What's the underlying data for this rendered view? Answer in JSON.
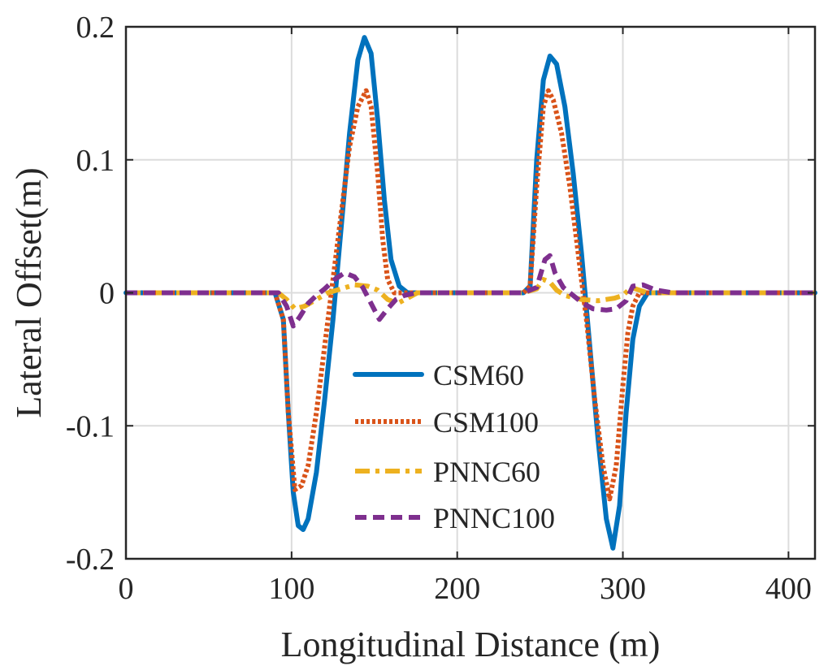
{
  "chart_data": {
    "type": "line",
    "title": "",
    "xlabel": "Longitudinal Distance (m)",
    "ylabel": "Lateral Offset(m)",
    "xlim": [
      0,
      416
    ],
    "ylim": [
      -0.2,
      0.2
    ],
    "grid": true,
    "legend_position": "bottom-center",
    "x_ticks": [
      0,
      100,
      200,
      300,
      400
    ],
    "x_tick_labels": [
      "0",
      "100",
      "200",
      "300",
      "400"
    ],
    "y_ticks": [
      0.2,
      0.1,
      0,
      -0.1,
      -0.2
    ],
    "y_tick_labels": [
      "0.2",
      "0.1",
      "0",
      "-0.1",
      "-0.2"
    ],
    "series": [
      {
        "name": "CSM60",
        "color": "#0072BD",
        "style": "solid",
        "points": [
          [
            0,
            0
          ],
          [
            90,
            0
          ],
          [
            95,
            -0.02
          ],
          [
            98,
            -0.09
          ],
          [
            101,
            -0.15
          ],
          [
            104,
            -0.175
          ],
          [
            107,
            -0.178
          ],
          [
            110,
            -0.17
          ],
          [
            115,
            -0.135
          ],
          [
            120,
            -0.08
          ],
          [
            125,
            -0.02
          ],
          [
            130,
            0.05
          ],
          [
            135,
            0.12
          ],
          [
            140,
            0.175
          ],
          [
            144,
            0.192
          ],
          [
            148,
            0.18
          ],
          [
            152,
            0.13
          ],
          [
            156,
            0.07
          ],
          [
            160,
            0.025
          ],
          [
            165,
            0.005
          ],
          [
            170,
            0
          ],
          [
            240,
            0
          ],
          [
            244,
            0.005
          ],
          [
            248,
            0.1
          ],
          [
            252,
            0.16
          ],
          [
            256,
            0.178
          ],
          [
            260,
            0.172
          ],
          [
            265,
            0.14
          ],
          [
            270,
            0.09
          ],
          [
            275,
            0.03
          ],
          [
            280,
            -0.04
          ],
          [
            285,
            -0.11
          ],
          [
            290,
            -0.17
          ],
          [
            294,
            -0.192
          ],
          [
            298,
            -0.16
          ],
          [
            302,
            -0.09
          ],
          [
            306,
            -0.035
          ],
          [
            310,
            -0.01
          ],
          [
            315,
            0
          ],
          [
            416,
            0
          ]
        ]
      },
      {
        "name": "CSM100",
        "color": "#D95319",
        "style": "dotted",
        "points": [
          [
            0,
            0
          ],
          [
            90,
            0
          ],
          [
            95,
            -0.02
          ],
          [
            98,
            -0.09
          ],
          [
            102,
            -0.148
          ],
          [
            106,
            -0.145
          ],
          [
            110,
            -0.13
          ],
          [
            115,
            -0.09
          ],
          [
            120,
            -0.04
          ],
          [
            125,
            0.01
          ],
          [
            130,
            0.06
          ],
          [
            135,
            0.11
          ],
          [
            140,
            0.14
          ],
          [
            145,
            0.152
          ],
          [
            148,
            0.14
          ],
          [
            152,
            0.09
          ],
          [
            155,
            0.04
          ],
          [
            158,
            0.01
          ],
          [
            162,
            0
          ],
          [
            240,
            0
          ],
          [
            244,
            0.005
          ],
          [
            248,
            0.08
          ],
          [
            252,
            0.14
          ],
          [
            255,
            0.152
          ],
          [
            258,
            0.145
          ],
          [
            263,
            0.12
          ],
          [
            268,
            0.08
          ],
          [
            273,
            0.03
          ],
          [
            278,
            -0.02
          ],
          [
            283,
            -0.08
          ],
          [
            288,
            -0.13
          ],
          [
            292,
            -0.155
          ],
          [
            296,
            -0.13
          ],
          [
            300,
            -0.07
          ],
          [
            303,
            -0.03
          ],
          [
            306,
            -0.01
          ],
          [
            310,
            0
          ],
          [
            416,
            0
          ]
        ]
      },
      {
        "name": "PNNC60",
        "color": "#EDB120",
        "style": "dashdot",
        "points": [
          [
            0,
            0
          ],
          [
            92,
            0
          ],
          [
            97,
            -0.005
          ],
          [
            102,
            -0.012
          ],
          [
            108,
            -0.01
          ],
          [
            115,
            -0.005
          ],
          [
            122,
            0
          ],
          [
            130,
            0.003
          ],
          [
            138,
            0.006
          ],
          [
            146,
            0.005
          ],
          [
            152,
            0.002
          ],
          [
            158,
            -0.005
          ],
          [
            164,
            -0.008
          ],
          [
            170,
            -0.004
          ],
          [
            176,
            0
          ],
          [
            240,
            0
          ],
          [
            248,
            0.003
          ],
          [
            252,
            0.01
          ],
          [
            256,
            0.008
          ],
          [
            260,
            0.002
          ],
          [
            265,
            -0.002
          ],
          [
            275,
            -0.005
          ],
          [
            285,
            -0.006
          ],
          [
            295,
            -0.004
          ],
          [
            300,
            -0.002
          ],
          [
            305,
            0.004
          ],
          [
            310,
            0.002
          ],
          [
            315,
            0
          ],
          [
            416,
            0
          ]
        ]
      },
      {
        "name": "PNNC100",
        "color": "#7E2F8E",
        "style": "dashed",
        "points": [
          [
            0,
            0
          ],
          [
            92,
            0
          ],
          [
            97,
            -0.01
          ],
          [
            101,
            -0.025
          ],
          [
            105,
            -0.018
          ],
          [
            110,
            -0.008
          ],
          [
            115,
            -0.002
          ],
          [
            120,
            0.003
          ],
          [
            126,
            0.01
          ],
          [
            132,
            0.015
          ],
          [
            138,
            0.012
          ],
          [
            143,
            0.004
          ],
          [
            148,
            -0.008
          ],
          [
            153,
            -0.02
          ],
          [
            158,
            -0.012
          ],
          [
            163,
            -0.005
          ],
          [
            168,
            -0.002
          ],
          [
            175,
            0
          ],
          [
            240,
            0
          ],
          [
            248,
            0.004
          ],
          [
            253,
            0.025
          ],
          [
            256,
            0.028
          ],
          [
            259,
            0.015
          ],
          [
            264,
            0.004
          ],
          [
            270,
            -0.002
          ],
          [
            276,
            -0.008
          ],
          [
            282,
            -0.012
          ],
          [
            290,
            -0.013
          ],
          [
            296,
            -0.012
          ],
          [
            302,
            -0.006
          ],
          [
            306,
            0.005
          ],
          [
            312,
            0.006
          ],
          [
            320,
            0.002
          ],
          [
            330,
            0
          ],
          [
            416,
            0
          ]
        ]
      }
    ]
  }
}
